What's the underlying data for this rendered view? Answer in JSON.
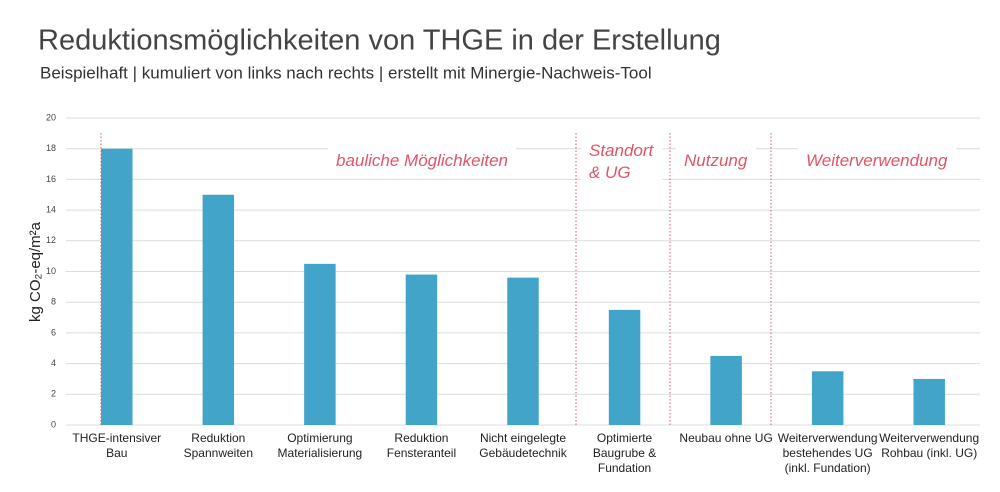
{
  "chart_data": {
    "type": "bar",
    "title": "Reduktionsmöglichkeiten von THGE in der Erstellung",
    "subtitle": "Beispielhaft | kumuliert von links nach rechts | erstellt mit Minergie-Nachweis-Tool",
    "y_label": "kg CO₂-eq/m²a",
    "categories": [
      [
        "THGE-intensiver",
        "Bau"
      ],
      [
        "Reduktion",
        "Spannweiten"
      ],
      [
        "Optimierung",
        "Materialisierung"
      ],
      [
        "Reduktion",
        "Fensteranteil"
      ],
      [
        "Nicht eingelegte",
        "Gebäudetechnik"
      ],
      [
        "Optimierte",
        "Baugrube &",
        "Fundation"
      ],
      [
        "Neubau ohne UG"
      ],
      [
        "Weiterverwendung",
        "bestehendes UG",
        "(inkl. Fundation)"
      ],
      [
        "Weiterverwendung",
        "Rohbau (inkl. UG)"
      ]
    ],
    "values": [
      18,
      15,
      10.5,
      9.8,
      9.6,
      7.5,
      4.5,
      3.5,
      3
    ],
    "color": "#41a4c8",
    "ylim": [
      0,
      20
    ],
    "yticks": [
      0,
      2,
      4,
      6,
      8,
      10,
      12,
      14,
      16,
      18,
      20
    ],
    "grid": true,
    "annotations": [
      [
        "bauliche Möglichkeiten"
      ],
      [
        "Standort",
        "& UG"
      ],
      [
        "Nutzung"
      ],
      [
        "Weiterverwendung"
      ]
    ]
  }
}
